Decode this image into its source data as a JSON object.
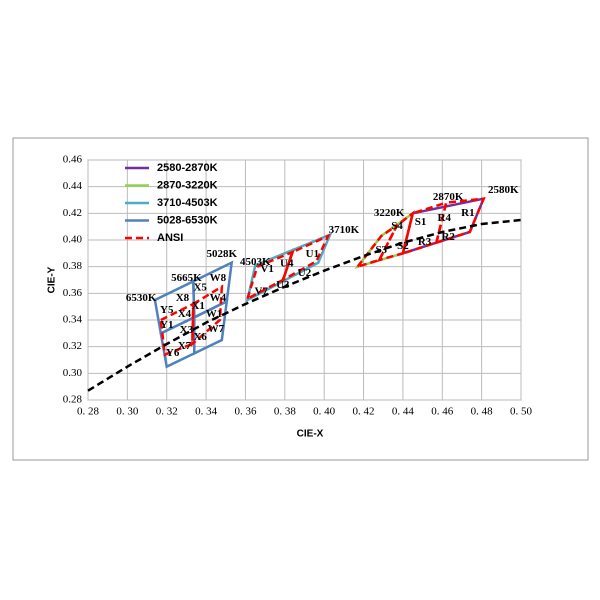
{
  "chart_data": {
    "type": "line",
    "x_label": "CIE-X",
    "y_label": "CIE-Y",
    "xlim": [
      0.28,
      0.5
    ],
    "ylim": [
      0.28,
      0.46
    ],
    "xticks": [
      {
        "value": 0.28,
        "label": "0. 28"
      },
      {
        "value": 0.3,
        "label": "0. 30"
      },
      {
        "value": 0.32,
        "label": "0. 32"
      },
      {
        "value": 0.34,
        "label": "0. 34"
      },
      {
        "value": 0.36,
        "label": "0. 36"
      },
      {
        "value": 0.38,
        "label": "0. 38"
      },
      {
        "value": 0.4,
        "label": "0. 40"
      },
      {
        "value": 0.42,
        "label": "0. 42"
      },
      {
        "value": 0.44,
        "label": "0. 44"
      },
      {
        "value": 0.46,
        "label": "0. 46"
      },
      {
        "value": 0.48,
        "label": "0. 48"
      },
      {
        "value": 0.5,
        "label": "0. 50"
      }
    ],
    "yticks": [
      {
        "value": 0.28,
        "label": "0.28"
      },
      {
        "value": 0.3,
        "label": "0.30"
      },
      {
        "value": 0.32,
        "label": "0.32"
      },
      {
        "value": 0.34,
        "label": "0.34"
      },
      {
        "value": 0.36,
        "label": "0.36"
      },
      {
        "value": 0.38,
        "label": "0.38"
      },
      {
        "value": 0.4,
        "label": "0.40"
      },
      {
        "value": 0.42,
        "label": "0.42"
      },
      {
        "value": 0.44,
        "label": "0.44"
      },
      {
        "value": 0.46,
        "label": "0.46"
      }
    ],
    "grid": true,
    "legend": "upper left",
    "series": [
      {
        "name": "2580-2870K",
        "color": "#7030a0",
        "dashed": false,
        "polygons": [
          {
            "x": [
              0.445,
              0.481,
              0.474,
              0.44
            ],
            "y": [
              0.42,
              0.431,
              0.406,
              0.39
            ]
          }
        ]
      },
      {
        "name": "2870-3220K",
        "color": "#92d050",
        "dashed": false,
        "polygons": [
          {
            "x": [
              0.417,
              0.429,
              0.445,
              0.44
            ],
            "y": [
              0.38,
              0.403,
              0.42,
              0.39
            ]
          }
        ]
      },
      {
        "name": "3710-4503K",
        "color": "#4bacc6",
        "dashed": false,
        "polygons": [
          {
            "x": [
              0.361,
              0.365,
              0.384,
              0.379
            ],
            "y": [
              0.355,
              0.381,
              0.3925,
              0.369
            ]
          },
          {
            "x": [
              0.379,
              0.384,
              0.403,
              0.397
            ],
            "y": [
              0.369,
              0.3925,
              0.404,
              0.383
            ]
          }
        ]
      },
      {
        "name": "5028-6530K",
        "color": "#4f81bd",
        "dashed": false,
        "polygons": [
          {
            "x": [
              0.314,
              0.3335,
              0.334,
              0.317
            ],
            "y": [
              0.355,
              0.369,
              0.342,
              0.33
            ]
          },
          {
            "x": [
              0.3335,
              0.353,
              0.3505,
              0.334
            ],
            "y": [
              0.369,
              0.383,
              0.354,
              0.342
            ]
          },
          {
            "x": [
              0.334,
              0.3505,
              0.348,
              0.334
            ],
            "y": [
              0.342,
              0.354,
              0.325,
              0.315
            ]
          },
          {
            "x": [
              0.317,
              0.334,
              0.334,
              0.32
            ],
            "y": [
              0.33,
              0.342,
              0.315,
              0.305
            ]
          }
        ]
      },
      {
        "name": "ANSI",
        "color": "#ff0000",
        "dashed": true,
        "polygons": [
          {
            "x": [
              0.317,
              0.3335,
              0.333,
              0.319
            ],
            "y": [
              0.34,
              0.352,
              0.322,
              0.314
            ]
          },
          {
            "x": [
              0.3335,
              0.348,
              0.347,
              0.333
            ],
            "y": [
              0.352,
              0.365,
              0.34,
              0.322
            ]
          },
          {
            "x": [
              0.361,
              0.366,
              0.384,
              0.379
            ],
            "y": [
              0.356,
              0.38,
              0.391,
              0.37
            ]
          },
          {
            "x": [
              0.379,
              0.384,
              0.402,
              0.396
            ],
            "y": [
              0.37,
              0.391,
              0.403,
              0.384
            ]
          },
          {
            "x": [
              0.417,
              0.429,
              0.437,
              0.428
            ],
            "y": [
              0.38,
              0.403,
              0.411,
              0.385
            ]
          },
          {
            "x": [
              0.428,
              0.437,
              0.445,
              0.44
            ],
            "y": [
              0.385,
              0.411,
              0.42,
              0.39
            ]
          },
          {
            "x": [
              0.44,
              0.445,
              0.462,
              0.457
            ],
            "y": [
              0.39,
              0.42,
              0.428,
              0.398
            ]
          },
          {
            "x": [
              0.457,
              0.462,
              0.481,
              0.474
            ],
            "y": [
              0.398,
              0.428,
              0.431,
              0.406
            ]
          }
        ]
      },
      {
        "color": "#000000",
        "dashed": true,
        "x": [
          0.28,
          0.3,
          0.32,
          0.34,
          0.36,
          0.38,
          0.4,
          0.42,
          0.44,
          0.46,
          0.48,
          0.5
        ],
        "values": [
          0.287,
          0.305,
          0.322,
          0.338,
          0.352,
          0.365,
          0.377,
          0.388,
          0.398,
          0.406,
          0.412,
          0.415
        ]
      }
    ],
    "annotations": [
      {
        "text": "2580K",
        "x": 0.491,
        "y": 0.437
      },
      {
        "text": "2870K",
        "x": 0.463,
        "y": 0.432
      },
      {
        "text": "3220K",
        "x": 0.433,
        "y": 0.42
      },
      {
        "text": "3710K",
        "x": 0.41,
        "y": 0.407
      },
      {
        "text": "4503K",
        "x": 0.365,
        "y": 0.383
      },
      {
        "text": "5028K",
        "x": 0.348,
        "y": 0.389
      },
      {
        "text": "5665K",
        "x": 0.33,
        "y": 0.371
      },
      {
        "text": "6530K",
        "x": 0.307,
        "y": 0.356
      },
      {
        "text": "R1",
        "x": 0.473,
        "y": 0.42
      },
      {
        "text": "R4",
        "x": 0.461,
        "y": 0.416
      },
      {
        "text": "S1",
        "x": 0.449,
        "y": 0.413
      },
      {
        "text": "S4",
        "x": 0.437,
        "y": 0.41
      },
      {
        "text": "R2",
        "x": 0.463,
        "y": 0.402
      },
      {
        "text": "R3",
        "x": 0.451,
        "y": 0.398
      },
      {
        "text": "S2",
        "x": 0.44,
        "y": 0.395
      },
      {
        "text": "S3",
        "x": 0.429,
        "y": 0.392
      },
      {
        "text": "U1",
        "x": 0.394,
        "y": 0.389
      },
      {
        "text": "U4",
        "x": 0.381,
        "y": 0.382
      },
      {
        "text": "U2",
        "x": 0.39,
        "y": 0.375
      },
      {
        "text": "U3",
        "x": 0.379,
        "y": 0.366
      },
      {
        "text": "V1",
        "x": 0.371,
        "y": 0.378
      },
      {
        "text": "V7",
        "x": 0.368,
        "y": 0.361
      },
      {
        "text": "W8",
        "x": 0.346,
        "y": 0.371
      },
      {
        "text": "W4",
        "x": 0.346,
        "y": 0.356
      },
      {
        "text": "W1",
        "x": 0.344,
        "y": 0.344
      },
      {
        "text": "W7",
        "x": 0.345,
        "y": 0.333
      },
      {
        "text": "X8",
        "x": 0.328,
        "y": 0.356
      },
      {
        "text": "X5",
        "x": 0.337,
        "y": 0.364
      },
      {
        "text": "X1",
        "x": 0.336,
        "y": 0.35
      },
      {
        "text": "X4",
        "x": 0.329,
        "y": 0.344
      },
      {
        "text": "X3",
        "x": 0.33,
        "y": 0.332
      },
      {
        "text": "X7",
        "x": 0.329,
        "y": 0.32
      },
      {
        "text": "X6",
        "x": 0.337,
        "y": 0.327
      },
      {
        "text": "Y5",
        "x": 0.32,
        "y": 0.347
      },
      {
        "text": "Y1",
        "x": 0.32,
        "y": 0.336
      },
      {
        "text": "Y6",
        "x": 0.323,
        "y": 0.315
      }
    ]
  }
}
